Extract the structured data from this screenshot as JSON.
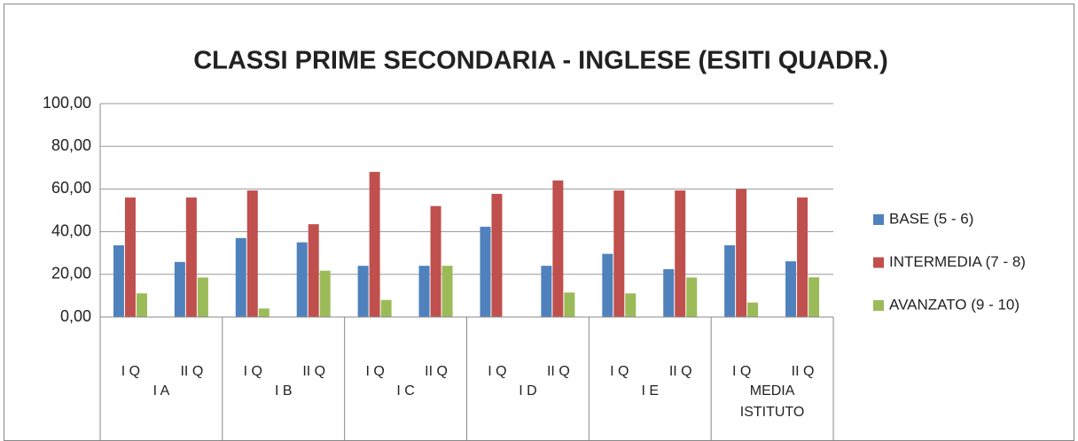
{
  "chart_data": {
    "type": "bar",
    "title": "CLASSI PRIME SECONDARIA - INGLESE (ESITI QUADR.)",
    "categories": [
      "I Q",
      "II Q",
      "I Q",
      "II Q",
      "I Q",
      "II Q",
      "I Q",
      "II Q",
      "I Q",
      "II Q",
      "I Q",
      "II Q"
    ],
    "groups": [
      "I A",
      "I B",
      "I C",
      "I D",
      "I E",
      "MEDIA ISTITUTO"
    ],
    "series": [
      {
        "name": "BASE (5 - 6)",
        "color": "#4f81bd",
        "values": [
          33.6,
          25.8,
          37,
          35,
          24,
          24,
          42.3,
          24,
          29.6,
          22.4,
          33.6,
          26.1
        ]
      },
      {
        "name": "INTERMEDIA (7 - 8)",
        "color": "#c0504d",
        "values": [
          56,
          56,
          59.3,
          43.5,
          68,
          52,
          57.7,
          64,
          59.3,
          59.3,
          60,
          56
        ]
      },
      {
        "name": "AVANZATO (9 - 10)",
        "color": "#9bbb59",
        "values": [
          11.1,
          18.5,
          4,
          21.7,
          8,
          24,
          0,
          11.5,
          11.1,
          18.5,
          6.8,
          18.6
        ]
      }
    ],
    "ylim": [
      0,
      100
    ],
    "yticks": [
      {
        "value": 0,
        "label": "0,00"
      },
      {
        "value": 20,
        "label": "20,00"
      },
      {
        "value": 40,
        "label": "40,00"
      },
      {
        "value": 60,
        "label": "60,00"
      },
      {
        "value": 80,
        "label": "80,00"
      },
      {
        "value": 100,
        "label": "100,00"
      }
    ],
    "grid": true,
    "legend": "right"
  }
}
